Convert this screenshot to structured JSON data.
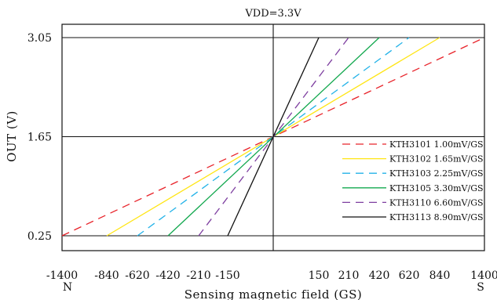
{
  "chart_data": {
    "type": "line",
    "title": "VDD=3.3V",
    "xlabel": "Sensing magnetic field (GS)",
    "ylabel": "OUT (V)",
    "x_tick_labels": [
      "-1400",
      "-840",
      "-620",
      "-420",
      "-210",
      "-150",
      "150",
      "210",
      "420",
      "620",
      "840",
      "1400"
    ],
    "x_end_labels": {
      "left": "N",
      "right": "S"
    },
    "y_tick_labels": [
      "0.25",
      "1.65",
      "3.05"
    ],
    "y_ticks": [
      0.25,
      1.65,
      3.05
    ],
    "grid": true,
    "legend_position": "right",
    "series": [
      {
        "name": "KTH3101 1.00mV/GS",
        "color": "#e8232a",
        "dash": "10,7",
        "x": [
          -1400,
          1400
        ],
        "y": [
          0.25,
          3.05
        ]
      },
      {
        "name": "KTH3102 1.65mV/GS",
        "color": "#ffe514",
        "dash": "",
        "x": [
          -840,
          840
        ],
        "y": [
          0.25,
          3.05
        ]
      },
      {
        "name": "KTH3103 2.25mV/GS",
        "color": "#22b2e8",
        "dash": "10,7",
        "x": [
          -620,
          620
        ],
        "y": [
          0.25,
          3.05
        ]
      },
      {
        "name": "KTH3105 3.30mV/GS",
        "color": "#13a84f",
        "dash": "",
        "x": [
          -420,
          420
        ],
        "y": [
          0.25,
          3.05
        ]
      },
      {
        "name": "KTH3110 6.60mV/GS",
        "color": "#7e3fa0",
        "dash": "10,7",
        "x": [
          -210,
          210
        ],
        "y": [
          0.25,
          3.05
        ]
      },
      {
        "name": "KTH3113 8.90mV/GS",
        "color": "#111111",
        "dash": "",
        "x": [
          -150,
          150
        ],
        "y": [
          0.25,
          3.05
        ]
      }
    ]
  }
}
